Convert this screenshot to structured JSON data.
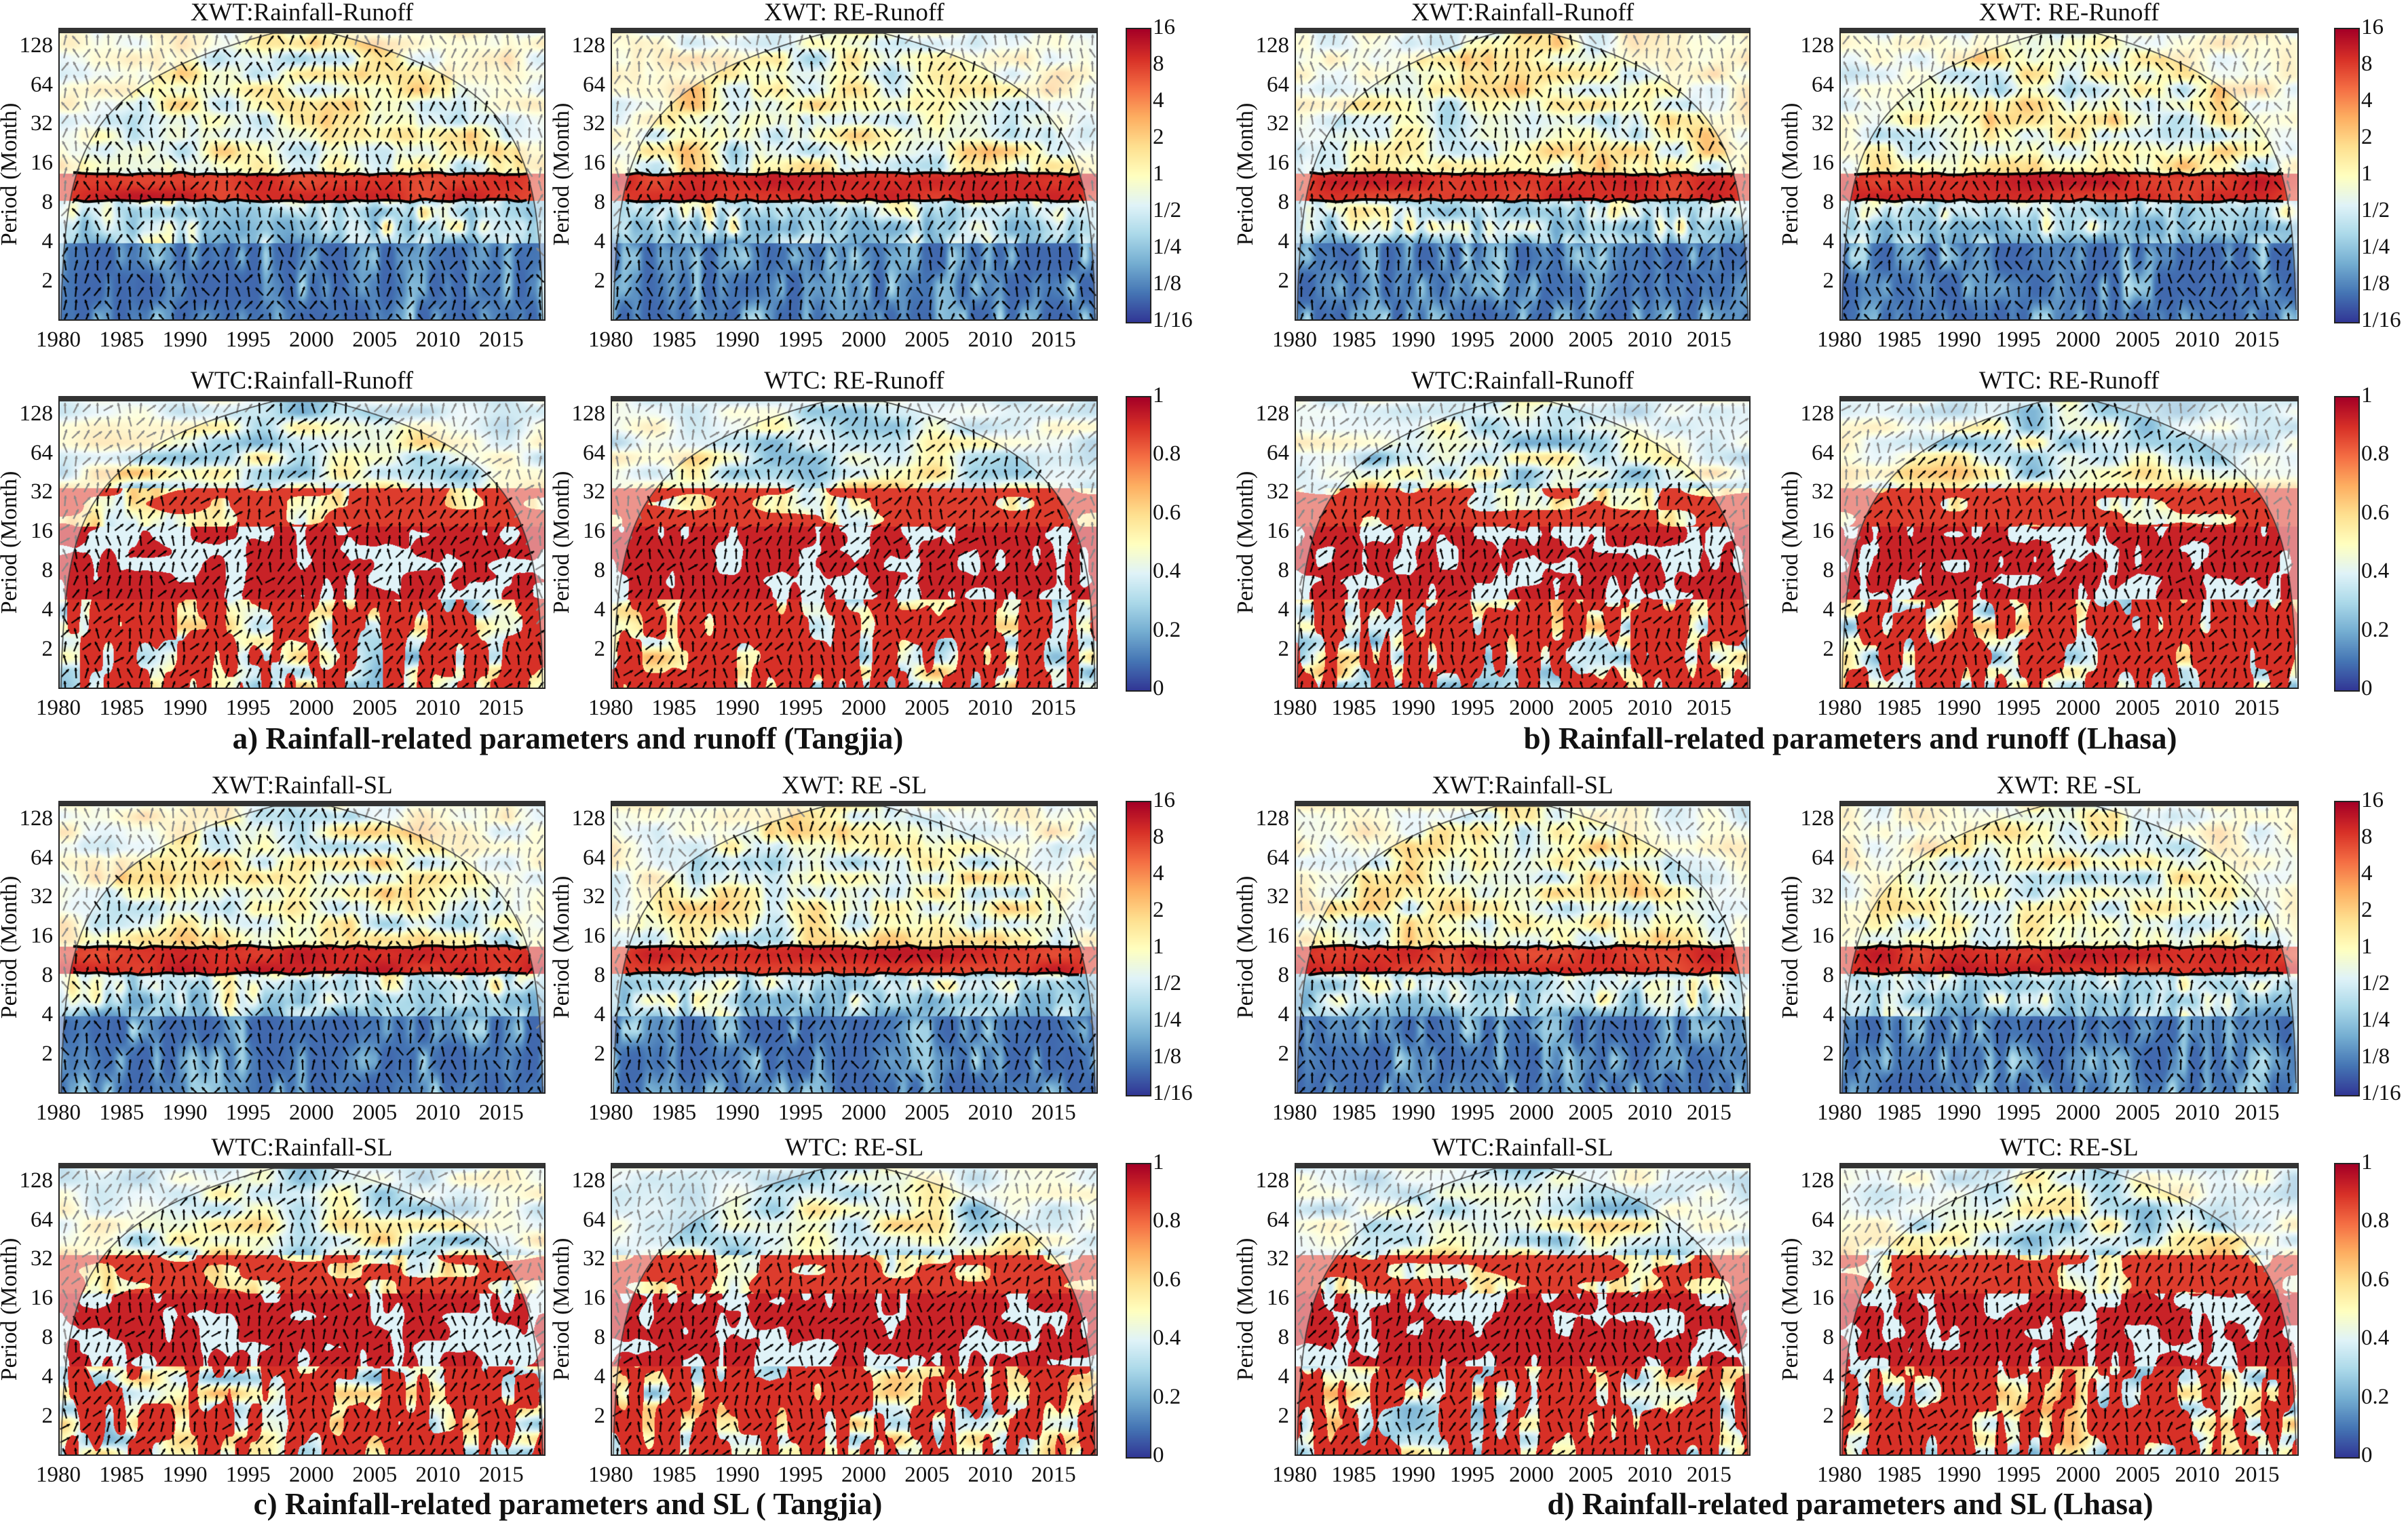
{
  "chart_data": {
    "type": "heatmap",
    "description_kind": "cross wavelet transform (XWT) and wavelet coherence (WTC) spectra",
    "ylabel": "Period (Month)",
    "xlabel": "",
    "yticks": [
      "128",
      "64",
      "32",
      "16",
      "8",
      "4",
      "2"
    ],
    "xticks": [
      "1980",
      "1985",
      "1990",
      "1995",
      "2000",
      "2005",
      "2010",
      "2015"
    ],
    "xlim": [
      1980,
      2018.5
    ],
    "colorbars": {
      "XWT": {
        "ticks": [
          "16",
          "8",
          "4",
          "2",
          "1",
          "1/2",
          "1/4",
          "1/8",
          "1/16"
        ],
        "range": [
          0.0625,
          16
        ]
      },
      "WTC": {
        "ticks": [
          "1",
          "0.8",
          "0.6",
          "0.4",
          "0.2",
          "0"
        ],
        "range": [
          0,
          1
        ]
      }
    },
    "colors": {
      "low": "#313695",
      "mid": "#ffffbf",
      "high": "#a50026"
    },
    "figures": [
      {
        "caption": "a) Rainfall-related parameters and runoff (Tangjia)",
        "panels": [
          {
            "title": "XWT:Rainfall-Runoff",
            "kind": "XWT"
          },
          {
            "title": "XWT: RE-Runoff",
            "kind": "XWT"
          },
          {
            "title": "WTC:Rainfall-Runoff",
            "kind": "WTC"
          },
          {
            "title": "WTC: RE-Runoff",
            "kind": "WTC"
          }
        ]
      },
      {
        "caption": "b) Rainfall-related parameters and runoff (Lhasa)",
        "panels": [
          {
            "title": "XWT:Rainfall-Runoff",
            "kind": "XWT"
          },
          {
            "title": "XWT: RE-Runoff",
            "kind": "XWT"
          },
          {
            "title": "WTC:Rainfall-Runoff",
            "kind": "WTC"
          },
          {
            "title": "WTC: RE-Runoff",
            "kind": "WTC"
          }
        ]
      },
      {
        "caption": "c) Rainfall-related parameters and SL ( Tangjia)",
        "panels": [
          {
            "title": "XWT:Rainfall-SL",
            "kind": "XWT"
          },
          {
            "title": "XWT: RE -SL",
            "kind": "XWT"
          },
          {
            "title": "WTC:Rainfall-SL",
            "kind": "WTC"
          },
          {
            "title": "WTC: RE-SL",
            "kind": "WTC"
          }
        ]
      },
      {
        "caption": "d) Rainfall-related parameters and SL (Lhasa)",
        "panels": [
          {
            "title": "XWT:Rainfall-SL",
            "kind": "XWT"
          },
          {
            "title": "XWT: RE -SL",
            "kind": "XWT"
          },
          {
            "title": "WTC:Rainfall-SL",
            "kind": "WTC"
          },
          {
            "title": "WTC: RE-SL",
            "kind": "WTC"
          }
        ]
      }
    ]
  }
}
